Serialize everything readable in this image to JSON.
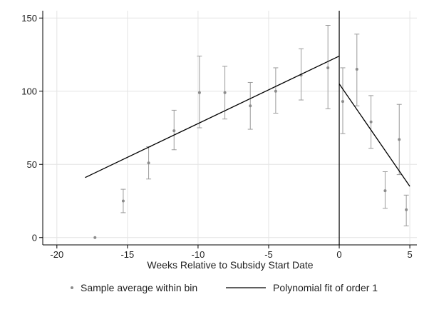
{
  "chart_data": {
    "type": "scatter",
    "title": "",
    "xlabel": "Weeks Relative to Subsidy Start Date",
    "ylabel": "",
    "xlim": [
      -21,
      5.5
    ],
    "ylim": [
      -5,
      155
    ],
    "xticks": [
      -20,
      -15,
      -10,
      -5,
      0,
      5
    ],
    "yticks": [
      0,
      50,
      100,
      150
    ],
    "grid": true,
    "legend_position": "bottom",
    "cutoff_x": 0,
    "series": [
      {
        "name": "Sample average within bin",
        "kind": "points-with-error-bars",
        "color": "#8c8c8c",
        "points": [
          {
            "x": -17.3,
            "y": 0,
            "lo": 0,
            "hi": 0
          },
          {
            "x": -15.3,
            "y": 25,
            "lo": 17,
            "hi": 33
          },
          {
            "x": -13.5,
            "y": 51,
            "lo": 40,
            "hi": 62
          },
          {
            "x": -11.7,
            "y": 73,
            "lo": 60,
            "hi": 87
          },
          {
            "x": -9.9,
            "y": 99,
            "lo": 75,
            "hi": 124
          },
          {
            "x": -8.1,
            "y": 99,
            "lo": 81,
            "hi": 117
          },
          {
            "x": -6.3,
            "y": 90,
            "lo": 74,
            "hi": 106
          },
          {
            "x": -4.5,
            "y": 100,
            "lo": 85,
            "hi": 116
          },
          {
            "x": -2.7,
            "y": 111,
            "lo": 94,
            "hi": 129
          },
          {
            "x": -0.8,
            "y": 116,
            "lo": 88,
            "hi": 145
          },
          {
            "x": 0.25,
            "y": 93,
            "lo": 71,
            "hi": 116
          },
          {
            "x": 1.25,
            "y": 115,
            "lo": 90,
            "hi": 139
          },
          {
            "x": 2.25,
            "y": 79,
            "lo": 61,
            "hi": 97
          },
          {
            "x": 3.25,
            "y": 32,
            "lo": 20,
            "hi": 45
          },
          {
            "x": 4.25,
            "y": 67,
            "lo": 43,
            "hi": 91
          },
          {
            "x": 4.75,
            "y": 19,
            "lo": 8,
            "hi": 29
          }
        ]
      },
      {
        "name": "Polynomial fit of order 1",
        "kind": "line",
        "color": "#000000",
        "segments": [
          [
            {
              "x": -18,
              "y": 41
            },
            {
              "x": 0,
              "y": 124
            }
          ],
          [
            {
              "x": 0,
              "y": 105
            },
            {
              "x": 5,
              "y": 35
            }
          ]
        ]
      }
    ]
  }
}
